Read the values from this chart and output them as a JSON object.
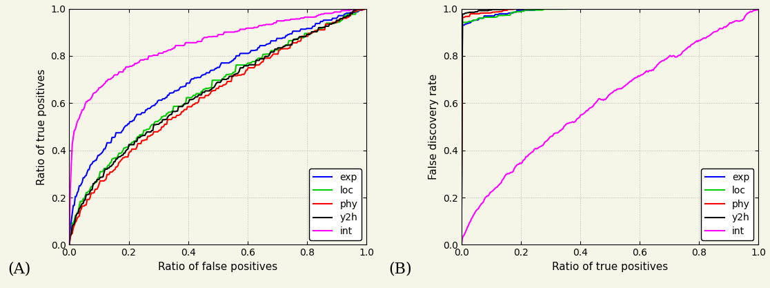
{
  "fig_width": 11.16,
  "fig_height": 4.17,
  "dpi": 100,
  "background_color": "#f5f5e8",
  "grid_color": "#aaaaaa",
  "grid_style": ":",
  "line_width": 1.5,
  "colors": {
    "exp": "#0000ff",
    "loc": "#00cc00",
    "phy": "#ff0000",
    "y2h": "#000000",
    "int": "#ff00ff"
  },
  "legend_labels": [
    "exp",
    "loc",
    "phy",
    "y2h",
    "int"
  ],
  "ax1": {
    "xlabel": "Ratio of false positives",
    "ylabel": "Ratio of true positives",
    "xlim": [
      0,
      1
    ],
    "ylim": [
      0,
      1
    ],
    "xticks": [
      0,
      0.2,
      0.4,
      0.6,
      0.8,
      1
    ],
    "yticks": [
      0,
      0.2,
      0.4,
      0.6,
      0.8,
      1
    ],
    "label": "(A)"
  },
  "ax2": {
    "xlabel": "Ratio of true positives",
    "ylabel": "False discovery rate",
    "xlim": [
      0,
      1
    ],
    "ylim": [
      0,
      1
    ],
    "xticks": [
      0,
      0.2,
      0.4,
      0.6,
      0.8,
      1
    ],
    "yticks": [
      0,
      0.2,
      0.4,
      0.6,
      0.8,
      1
    ],
    "label": "(B)"
  }
}
